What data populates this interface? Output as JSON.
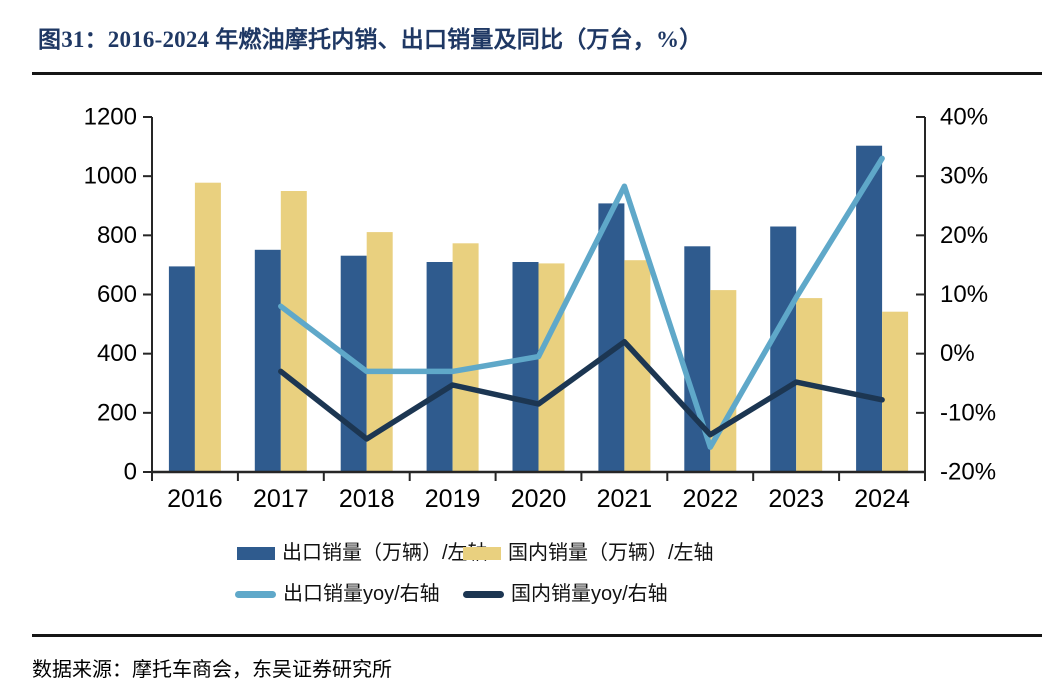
{
  "title": "图31：2016-2024 年燃油摩托内销、出口销量及同比（万台，%）",
  "source": "数据来源：摩托车商会，东吴证券研究所",
  "colors": {
    "title_navy": "#1F3864",
    "export_bar_blue": "#2F5B8E",
    "domestic_bar_yellow": "#E9D07F",
    "export_line_lightblue": "#5FA8C9",
    "domestic_line_navy": "#1C3652",
    "axis": "#262626"
  },
  "chart_data": {
    "type": "combo-bar-line",
    "grid": false,
    "legend_position": "bottom",
    "categories": [
      "2016",
      "2017",
      "2018",
      "2019",
      "2020",
      "2021",
      "2022",
      "2023",
      "2024"
    ],
    "left_axis": {
      "min": 0,
      "max": 1200,
      "tick_values": [
        0,
        200,
        400,
        600,
        800,
        1000,
        1200
      ],
      "tick_labels": [
        "0",
        "200",
        "400",
        "600",
        "800",
        "1000",
        "1200"
      ]
    },
    "right_axis": {
      "min": -20,
      "max": 40,
      "tick_values": [
        -20,
        -10,
        0,
        10,
        20,
        30,
        40
      ],
      "tick_labels": [
        "-20%",
        "-10%",
        "0%",
        "10%",
        "20%",
        "30%",
        "40%"
      ]
    },
    "series": [
      {
        "name": "出口销量（万辆）/左轴",
        "type": "bar",
        "axis": "left",
        "color": "#2F5B8E",
        "values": [
          695,
          751,
          731,
          710,
          710,
          908,
          763,
          830,
          1103
        ]
      },
      {
        "name": "国内销量（万辆）/左轴",
        "type": "bar",
        "axis": "left",
        "color": "#E9D07F",
        "values": [
          978,
          950,
          811,
          773,
          705,
          716,
          615,
          588,
          542
        ]
      },
      {
        "name": "出口销量yoy/右轴",
        "type": "line",
        "axis": "right",
        "color": "#5FA8C9",
        "values": [
          null,
          8,
          -3,
          -3,
          -0.5,
          28.3,
          -15.8,
          9.5,
          33
        ]
      },
      {
        "name": "国内销量yoy/右轴",
        "type": "line",
        "axis": "right",
        "color": "#1C3652",
        "values": [
          null,
          -3,
          -14.4,
          -5.3,
          -8.5,
          2,
          -13.7,
          -4.8,
          -7.8
        ]
      }
    ]
  }
}
